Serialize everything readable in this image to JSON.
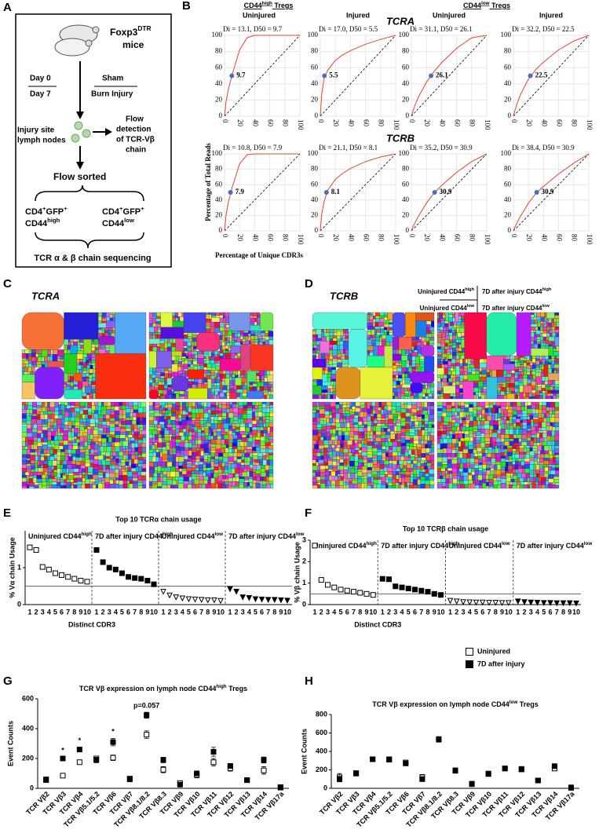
{
  "panel_labels": [
    "A",
    "B",
    "C",
    "D",
    "E",
    "F",
    "G",
    "H"
  ],
  "diagram": {
    "mice_line1": [
      "Foxp3",
      {
        "sup": "DTR"
      }
    ],
    "mice_line2": "mice",
    "day0": "Day 0",
    "day7": "Day 7",
    "sham": "Sham",
    "burn": "Burn Injury",
    "injury_site": [
      "Injury site",
      "lymph nodes"
    ],
    "flow_detection": [
      "Flow",
      "detection",
      "of TCR-Vβ",
      "chain"
    ],
    "flow_sorted": "Flow sorted",
    "sort_high": [
      [
        "CD4",
        {
          "sup": "+"
        },
        "GFP",
        {
          "sup": "+"
        }
      ],
      [
        "CD44",
        {
          "sup": "high"
        }
      ]
    ],
    "sort_low": [
      [
        "CD4",
        {
          "sup": "+"
        },
        "GFP",
        {
          "sup": "+"
        }
      ],
      [
        "CD44",
        {
          "sup": "low"
        }
      ]
    ],
    "sequencing": "TCR α & β chain sequencing"
  },
  "panel_b": {
    "group_headers": [
      [
        "CD44",
        {
          "sup": "high"
        },
        " Tregs"
      ],
      [
        "CD44",
        {
          "sup": "low"
        },
        " Tregs"
      ]
    ],
    "col_headers": [
      "Uninjured",
      "Injured",
      "Uninjured",
      "Injured"
    ],
    "row_titles": [
      "TCRA",
      "TCRB"
    ],
    "ylabel": "Percentage of Total Reads",
    "xlabel": "Percentage of Unique CDR3s"
  },
  "treemaps": {
    "C": {
      "title": "TCRA"
    },
    "D": {
      "title": "TCRB",
      "legend": [
        [
          "Uninjured CD44",
          {
            "sup": "high"
          }
        ],
        [
          "7D after injury CD44",
          {
            "sup": "high"
          }
        ],
        [
          "Uninjured CD44",
          {
            "sup": "low"
          }
        ],
        [
          "7D after injury CD44",
          {
            "sup": "low"
          }
        ]
      ]
    }
  },
  "chart_data": [
    {
      "type": "lorenz",
      "title": "Di = 13.1, D50 = 9.7",
      "x": [
        0,
        2,
        5,
        10,
        20,
        30,
        40,
        60,
        80,
        100
      ],
      "series": [
        {
          "color": "#e0452f",
          "values": [
            0,
            18,
            33,
            51,
            82,
            97,
            100,
            100,
            100,
            100
          ]
        }
      ],
      "d50_point": {
        "x": 9.7,
        "y": 50
      },
      "xlim": [
        0,
        100
      ],
      "ylim": [
        0,
        100
      ],
      "xticks": [
        0,
        20,
        40,
        60,
        80,
        100
      ],
      "yticks": [
        0,
        20,
        40,
        60,
        80,
        100
      ],
      "grid": true
    },
    {
      "type": "lorenz",
      "title": "Di = 17.0, D50 = 5.5",
      "x": [
        0,
        2,
        5,
        10,
        20,
        30,
        40,
        60,
        80,
        100
      ],
      "series": [
        {
          "color": "#e0452f",
          "values": [
            0,
            28,
            47,
            57,
            69,
            76,
            81,
            89,
            95,
            100
          ]
        }
      ],
      "d50_point": {
        "x": 5.5,
        "y": 50
      },
      "xlim": [
        0,
        100
      ],
      "ylim": [
        0,
        100
      ],
      "xticks": [
        0,
        20,
        40,
        60,
        80,
        100
      ],
      "yticks": [
        0,
        20,
        40,
        60,
        80,
        100
      ],
      "grid": true
    },
    {
      "type": "lorenz",
      "title": "Di = 31.1, D50 = 26.1",
      "x": [
        0,
        2,
        5,
        10,
        20,
        30,
        40,
        60,
        80,
        100
      ],
      "series": [
        {
          "color": "#e0452f",
          "values": [
            0,
            6,
            14,
            25,
            42,
            55,
            66,
            84,
            97,
            100
          ]
        }
      ],
      "d50_point": {
        "x": 26.1,
        "y": 50
      },
      "xlim": [
        0,
        100
      ],
      "ylim": [
        0,
        100
      ],
      "xticks": [
        0,
        20,
        40,
        60,
        80,
        100
      ],
      "yticks": [
        0,
        20,
        40,
        60,
        80,
        100
      ],
      "grid": true
    },
    {
      "type": "lorenz",
      "title": "Di = 32.2, D50 = 22.5",
      "x": [
        0,
        2,
        5,
        10,
        20,
        30,
        40,
        60,
        80,
        100
      ],
      "series": [
        {
          "color": "#e0452f",
          "values": [
            0,
            7,
            16,
            28,
            46,
            58,
            67,
            82,
            93,
            100
          ]
        }
      ],
      "d50_point": {
        "x": 22.5,
        "y": 50
      },
      "xlim": [
        0,
        100
      ],
      "ylim": [
        0,
        100
      ],
      "xticks": [
        0,
        20,
        40,
        60,
        80,
        100
      ],
      "yticks": [
        0,
        20,
        40,
        60,
        80,
        100
      ],
      "grid": true
    },
    {
      "type": "lorenz",
      "title": "Di = 10.8, D50 = 7.9",
      "x": [
        0,
        2,
        5,
        10,
        20,
        30,
        40,
        60,
        80,
        100
      ],
      "series": [
        {
          "color": "#e0452f",
          "values": [
            0,
            20,
            37,
            56,
            87,
            99,
            100,
            100,
            100,
            100
          ]
        }
      ],
      "d50_point": {
        "x": 7.9,
        "y": 50
      },
      "xlim": [
        0,
        100
      ],
      "ylim": [
        0,
        100
      ],
      "xticks": [
        0,
        20,
        40,
        60,
        80,
        100
      ],
      "yticks": [
        0,
        20,
        40,
        60,
        80,
        100
      ],
      "grid": true
    },
    {
      "type": "lorenz",
      "title": "Di = 21.1, D50 = 8.1",
      "x": [
        0,
        2,
        5,
        10,
        20,
        30,
        40,
        60,
        80,
        100
      ],
      "series": [
        {
          "color": "#e0452f",
          "values": [
            0,
            22,
            38,
            53,
            67,
            75,
            81,
            90,
            96,
            100
          ]
        }
      ],
      "d50_point": {
        "x": 8.1,
        "y": 50
      },
      "xlim": [
        0,
        100
      ],
      "ylim": [
        0,
        100
      ],
      "xticks": [
        0,
        20,
        40,
        60,
        80,
        100
      ],
      "yticks": [
        0,
        20,
        40,
        60,
        80,
        100
      ],
      "grid": true
    },
    {
      "type": "lorenz",
      "title": "Di = 35.2, D50 = 30.9",
      "x": [
        0,
        2,
        5,
        10,
        20,
        30,
        40,
        60,
        80,
        100
      ],
      "series": [
        {
          "color": "#e0452f",
          "values": [
            0,
            5,
            11,
            20,
            36,
            49,
            59,
            76,
            90,
            100
          ]
        }
      ],
      "d50_point": {
        "x": 30.9,
        "y": 50
      },
      "xlim": [
        0,
        100
      ],
      "ylim": [
        0,
        100
      ],
      "xticks": [
        0,
        20,
        40,
        60,
        80,
        100
      ],
      "yticks": [
        0,
        20,
        40,
        60,
        80,
        100
      ],
      "grid": true
    },
    {
      "type": "lorenz",
      "title": "Di = 38.4, D50 = 30.9",
      "x": [
        0,
        2,
        5,
        10,
        20,
        30,
        40,
        60,
        80,
        100
      ],
      "series": [
        {
          "color": "#e0452f",
          "values": [
            0,
            5,
            11,
            20,
            36,
            49,
            58,
            74,
            88,
            100
          ]
        }
      ],
      "d50_point": {
        "x": 30.9,
        "y": 50
      },
      "xlim": [
        0,
        100
      ],
      "ylim": [
        0,
        100
      ],
      "xticks": [
        0,
        20,
        40,
        60,
        80,
        100
      ],
      "yticks": [
        0,
        20,
        40,
        60,
        80,
        100
      ],
      "grid": true
    },
    {
      "type": "usage",
      "title": "Top 10 TCRα chain usage",
      "ylabel": "% Vα chain Usage",
      "xlabel": "Distinct CDR3",
      "categories": [
        "1",
        "2",
        "3",
        "4",
        "5",
        "6",
        "7",
        "8",
        "9",
        "10"
      ],
      "groups": [
        [
          "Uninjured CD44",
          {
            "sup": "high"
          }
        ],
        [
          "7D after injury CD44",
          {
            "sup": "high"
          }
        ],
        [
          "Uninjured CD44",
          {
            "sup": "low"
          }
        ],
        [
          "7D after injury CD44",
          {
            "sup": "low"
          }
        ]
      ],
      "series": [
        {
          "marker": "square-open",
          "color": "#000000",
          "values": [
            1.55,
            1.48,
            1.02,
            0.95,
            0.85,
            0.8,
            0.75,
            0.7,
            0.65,
            0.62
          ]
        },
        {
          "marker": "square-filled",
          "color": "#000000",
          "values": [
            1.48,
            1.15,
            1.0,
            0.95,
            0.85,
            0.75,
            0.72,
            0.7,
            0.65,
            0.55
          ]
        },
        {
          "marker": "triangle-open",
          "color": "#000000",
          "values": [
            0.35,
            0.25,
            0.2,
            0.17,
            0.15,
            0.14,
            0.13,
            0.12,
            0.12,
            0.1
          ]
        },
        {
          "marker": "triangle-filled",
          "color": "#000000",
          "values": [
            0.42,
            0.35,
            0.2,
            0.18,
            0.15,
            0.14,
            0.13,
            0.13,
            0.12,
            0.11
          ]
        }
      ],
      "reference_line": 0.5,
      "ylim": [
        0,
        2
      ],
      "yticks": [
        0,
        1
      ]
    },
    {
      "type": "usage",
      "title": "Top 10 TCRβ chain usage",
      "ylabel": "% Vβ chain Usage",
      "xlabel": "Distinct CDR3",
      "categories": [
        "1",
        "2",
        "3",
        "4",
        "5",
        "6",
        "7",
        "8",
        "9",
        "10"
      ],
      "groups": [
        [
          "Uninjured CD44",
          {
            "sup": "high"
          }
        ],
        [
          "7D after injury CD44",
          {
            "sup": "high"
          }
        ],
        [
          "Uninjured CD44",
          {
            "sup": "low"
          }
        ],
        [
          "7D after injury CD44",
          {
            "sup": "low"
          }
        ]
      ],
      "series": [
        {
          "name": "Uninjured",
          "marker": "square-open",
          "color": "#000000",
          "values": [
            2.75,
            1.15,
            0.92,
            0.8,
            0.7,
            0.65,
            0.6,
            0.55,
            0.5,
            0.45
          ]
        },
        {
          "name": "7D after injury",
          "marker": "square-filled",
          "color": "#000000",
          "values": [
            1.2,
            1.18,
            0.85,
            0.8,
            0.75,
            0.7,
            0.65,
            0.6,
            0.5,
            0.45
          ]
        },
        {
          "marker": "triangle-open",
          "color": "#000000",
          "values": [
            0.18,
            0.15,
            0.12,
            0.11,
            0.1,
            0.1,
            0.09,
            0.09,
            0.08,
            0.08
          ]
        },
        {
          "marker": "triangle-filled",
          "color": "#000000",
          "values": [
            0.15,
            0.12,
            0.1,
            0.09,
            0.08,
            0.08,
            0.07,
            0.07,
            0.07,
            0.06
          ]
        }
      ],
      "reference_line": 0.5,
      "ylim": [
        0,
        3
      ],
      "yticks": [
        0,
        1,
        2,
        3
      ]
    },
    {
      "type": "dot-error",
      "title": [
        "TCR Vβ expression on lymph node CD44",
        {
          "sup": "high"
        },
        " Tregs"
      ],
      "ylabel": "Event Counts",
      "categories": [
        "TCR Vβ2",
        "TCR Vβ3",
        "TCR Vβ4",
        "TCR Vβ5.1/5.2",
        "TCR Vβ6",
        "TCR Vβ7",
        "TCR Vβ8.1/8.2",
        "TCR Vβ8.3",
        "TCR Vβ9",
        "TCR Vβ10",
        "TCR Vβ11",
        "TCR Vβ12",
        "TCR Vβ13",
        "TCR Vβ14",
        "TCR Vβ17a"
      ],
      "series": [
        {
          "name": "Uninjured",
          "marker": "square-open",
          "color": "#000000",
          "values": [
            55,
            85,
            175,
            200,
            205,
            65,
            360,
            125,
            35,
            90,
            175,
            135,
            55,
            120,
            8
          ],
          "errors": [
            15,
            8,
            12,
            15,
            18,
            10,
            25,
            20,
            10,
            20,
            25,
            20,
            5,
            25,
            4
          ]
        },
        {
          "name": "7D after injury",
          "marker": "square-filled",
          "color": "#000000",
          "values": [
            60,
            200,
            260,
            190,
            310,
            60,
            490,
            190,
            25,
            100,
            245,
            150,
            55,
            190,
            5
          ],
          "errors": [
            12,
            10,
            15,
            18,
            25,
            8,
            20,
            18,
            8,
            15,
            30,
            15,
            5,
            20,
            3
          ]
        }
      ],
      "annotations": [
        {
          "category": "TCR Vβ3",
          "text": "*"
        },
        {
          "category": "TCR Vβ4",
          "text": "*"
        },
        {
          "category": "TCR Vβ6",
          "text": "*"
        },
        {
          "category": "TCR Vβ8.1/8.2",
          "text": "p=0.057"
        }
      ],
      "ylim": [
        0,
        600
      ],
      "yticks": [
        0,
        200,
        400,
        600
      ]
    },
    {
      "type": "dot-error",
      "title": [
        "TCR Vβ expression on lymph node CD44",
        {
          "sup": "low"
        },
        "  Tregs"
      ],
      "ylabel": "Event Counts",
      "categories": [
        "TCR Vβ2",
        "TCR Vβ3",
        "TCR Vβ4",
        "TCR Vβ5.1/5.2",
        "TCR Vβ6",
        "TCR Vβ7",
        "TCR Vβ8.1/8.2",
        "TCR Vβ8.3",
        "TCR Vβ9",
        "TCR Vβ10",
        "TCR Vβ11",
        "TCR Vβ12",
        "TCR Vβ13",
        "TCR Vβ14",
        "TCR Vβ17a"
      ],
      "series": [
        {
          "name": "Uninjured",
          "marker": "square-open",
          "color": "#000000",
          "values": [
            120,
            160,
            315,
            315,
            280,
            120,
            530,
            190,
            50,
            160,
            215,
            205,
            85,
            215,
            10
          ],
          "errors": [
            40,
            12,
            15,
            15,
            20,
            30,
            30,
            12,
            10,
            10,
            12,
            10,
            8,
            15,
            4
          ]
        },
        {
          "name": "7D after injury",
          "marker": "square-filled",
          "color": "#000000",
          "values": [
            100,
            165,
            315,
            310,
            270,
            100,
            530,
            195,
            45,
            155,
            215,
            210,
            85,
            240,
            5
          ],
          "errors": [
            30,
            10,
            12,
            12,
            18,
            25,
            25,
            10,
            8,
            10,
            10,
            10,
            8,
            15,
            3
          ]
        }
      ],
      "ylim": [
        0,
        800
      ],
      "yticks": [
        0,
        200,
        400,
        600,
        800
      ]
    }
  ]
}
